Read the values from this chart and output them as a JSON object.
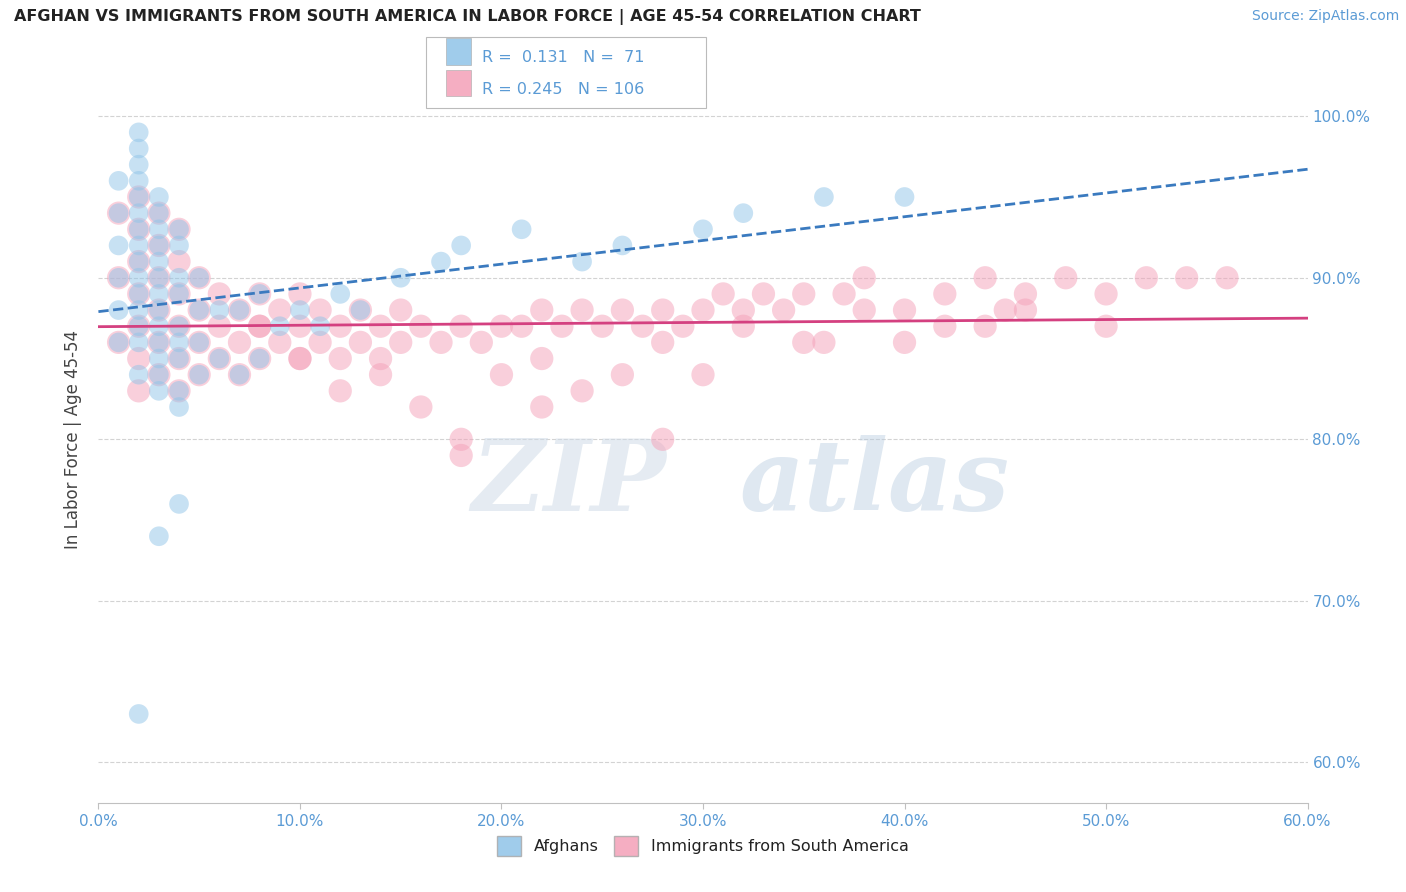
{
  "title": "AFGHAN VS IMMIGRANTS FROM SOUTH AMERICA IN LABOR FORCE | AGE 45-54 CORRELATION CHART",
  "source": "Source: ZipAtlas.com",
  "ylabel": "In Labor Force | Age 45-54",
  "xlim": [
    0.0,
    0.6
  ],
  "ylim": [
    0.575,
    1.025
  ],
  "ytick_labels": [
    "60.0%",
    "70.0%",
    "80.0%",
    "90.0%",
    "100.0%"
  ],
  "ytick_values": [
    0.6,
    0.7,
    0.8,
    0.9,
    1.0
  ],
  "xtick_labels": [
    "0.0%",
    "10.0%",
    "20.0%",
    "30.0%",
    "40.0%",
    "50.0%",
    "60.0%"
  ],
  "xtick_values": [
    0.0,
    0.1,
    0.2,
    0.3,
    0.4,
    0.5,
    0.6
  ],
  "R_blue": 0.131,
  "N_blue": 71,
  "R_pink": 0.245,
  "N_pink": 106,
  "blue_color": "#90c4e8",
  "pink_color": "#f4a0b8",
  "blue_line_color": "#3a7abf",
  "pink_line_color": "#d44080",
  "watermark_zip": "ZIP",
  "watermark_atlas": "atlas",
  "blue_x": [
    0.01,
    0.01,
    0.01,
    0.01,
    0.01,
    0.01,
    0.02,
    0.02,
    0.02,
    0.02,
    0.02,
    0.02,
    0.02,
    0.02,
    0.02,
    0.02,
    0.02,
    0.02,
    0.02,
    0.02,
    0.02,
    0.03,
    0.03,
    0.03,
    0.03,
    0.03,
    0.03,
    0.03,
    0.03,
    0.03,
    0.03,
    0.03,
    0.03,
    0.03,
    0.04,
    0.04,
    0.04,
    0.04,
    0.04,
    0.04,
    0.04,
    0.04,
    0.04,
    0.05,
    0.05,
    0.05,
    0.05,
    0.06,
    0.06,
    0.07,
    0.07,
    0.08,
    0.08,
    0.09,
    0.1,
    0.11,
    0.12,
    0.13,
    0.15,
    0.17,
    0.18,
    0.21,
    0.24,
    0.26,
    0.3,
    0.32,
    0.36,
    0.4,
    0.04,
    0.03,
    0.02
  ],
  "blue_y": [
    0.86,
    0.88,
    0.9,
    0.92,
    0.94,
    0.96,
    0.84,
    0.86,
    0.87,
    0.88,
    0.89,
    0.9,
    0.91,
    0.92,
    0.93,
    0.94,
    0.95,
    0.96,
    0.97,
    0.98,
    0.99,
    0.83,
    0.84,
    0.85,
    0.86,
    0.87,
    0.88,
    0.89,
    0.9,
    0.91,
    0.92,
    0.93,
    0.94,
    0.95,
    0.82,
    0.83,
    0.85,
    0.86,
    0.87,
    0.89,
    0.9,
    0.92,
    0.93,
    0.84,
    0.86,
    0.88,
    0.9,
    0.85,
    0.88,
    0.84,
    0.88,
    0.85,
    0.89,
    0.87,
    0.88,
    0.87,
    0.89,
    0.88,
    0.9,
    0.91,
    0.92,
    0.93,
    0.91,
    0.92,
    0.93,
    0.94,
    0.95,
    0.95,
    0.76,
    0.74,
    0.63
  ],
  "pink_x": [
    0.01,
    0.01,
    0.01,
    0.02,
    0.02,
    0.02,
    0.02,
    0.02,
    0.02,
    0.02,
    0.03,
    0.03,
    0.03,
    0.03,
    0.03,
    0.03,
    0.04,
    0.04,
    0.04,
    0.04,
    0.04,
    0.04,
    0.05,
    0.05,
    0.05,
    0.05,
    0.06,
    0.06,
    0.06,
    0.07,
    0.07,
    0.07,
    0.08,
    0.08,
    0.08,
    0.09,
    0.09,
    0.1,
    0.1,
    0.1,
    0.11,
    0.11,
    0.12,
    0.12,
    0.13,
    0.13,
    0.14,
    0.14,
    0.15,
    0.15,
    0.16,
    0.17,
    0.18,
    0.19,
    0.2,
    0.21,
    0.22,
    0.23,
    0.24,
    0.25,
    0.26,
    0.27,
    0.28,
    0.29,
    0.3,
    0.31,
    0.32,
    0.33,
    0.35,
    0.37,
    0.38,
    0.4,
    0.42,
    0.44,
    0.46,
    0.48,
    0.5,
    0.52,
    0.54,
    0.56,
    0.22,
    0.26,
    0.3,
    0.18,
    0.14,
    0.08,
    0.35,
    0.4,
    0.28,
    0.24,
    0.16,
    0.32,
    0.2,
    0.12,
    0.45,
    0.5,
    0.38,
    0.42,
    0.34,
    0.1,
    0.28,
    0.22,
    0.36,
    0.18,
    0.44,
    0.46
  ],
  "pink_y": [
    0.86,
    0.9,
    0.94,
    0.83,
    0.85,
    0.87,
    0.89,
    0.91,
    0.93,
    0.95,
    0.84,
    0.86,
    0.88,
    0.9,
    0.92,
    0.94,
    0.83,
    0.85,
    0.87,
    0.89,
    0.91,
    0.93,
    0.84,
    0.86,
    0.88,
    0.9,
    0.85,
    0.87,
    0.89,
    0.84,
    0.86,
    0.88,
    0.85,
    0.87,
    0.89,
    0.86,
    0.88,
    0.85,
    0.87,
    0.89,
    0.86,
    0.88,
    0.85,
    0.87,
    0.86,
    0.88,
    0.85,
    0.87,
    0.86,
    0.88,
    0.87,
    0.86,
    0.87,
    0.86,
    0.87,
    0.87,
    0.88,
    0.87,
    0.88,
    0.87,
    0.88,
    0.87,
    0.88,
    0.87,
    0.88,
    0.89,
    0.88,
    0.89,
    0.89,
    0.89,
    0.9,
    0.88,
    0.89,
    0.9,
    0.89,
    0.9,
    0.89,
    0.9,
    0.9,
    0.9,
    0.82,
    0.84,
    0.84,
    0.8,
    0.84,
    0.87,
    0.86,
    0.86,
    0.86,
    0.83,
    0.82,
    0.87,
    0.84,
    0.83,
    0.88,
    0.87,
    0.88,
    0.87,
    0.88,
    0.85,
    0.8,
    0.85,
    0.86,
    0.79,
    0.87,
    0.88
  ]
}
